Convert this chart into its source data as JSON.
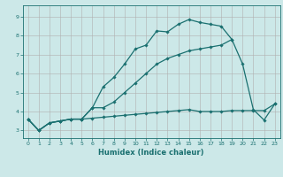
{
  "xlabel": "Humidex (Indice chaleur)",
  "ylabel": "",
  "background_color": "#cce8e8",
  "grid_color": "#b0b0b0",
  "line_color": "#1a7070",
  "xlim": [
    -0.5,
    23.5
  ],
  "ylim": [
    2.6,
    9.6
  ],
  "xticks": [
    0,
    1,
    2,
    3,
    4,
    5,
    6,
    7,
    8,
    9,
    10,
    11,
    12,
    13,
    14,
    15,
    16,
    17,
    18,
    19,
    20,
    21,
    22,
    23
  ],
  "yticks": [
    3,
    4,
    5,
    6,
    7,
    8,
    9
  ],
  "series": [
    {
      "x": [
        0,
        1,
        2,
        3,
        4,
        5,
        6,
        7,
        8,
        9,
        10,
        11,
        12,
        13,
        14,
        15,
        16,
        17,
        18,
        19
      ],
      "y": [
        3.6,
        3.0,
        3.4,
        3.5,
        3.6,
        3.6,
        4.2,
        5.3,
        5.8,
        6.5,
        7.3,
        7.5,
        8.25,
        8.2,
        8.6,
        8.85,
        8.7,
        8.6,
        8.5,
        7.8
      ]
    },
    {
      "x": [
        0,
        1,
        2,
        3,
        4,
        5,
        6,
        7,
        8,
        9,
        10,
        11,
        12,
        13,
        14,
        15,
        16,
        17,
        18,
        19,
        20,
        21,
        22,
        23
      ],
      "y": [
        3.6,
        3.0,
        3.4,
        3.5,
        3.6,
        3.6,
        4.2,
        4.2,
        4.5,
        5.0,
        5.5,
        6.0,
        6.5,
        6.8,
        7.0,
        7.2,
        7.3,
        7.4,
        7.5,
        7.8,
        6.5,
        4.1,
        3.55,
        4.4
      ]
    },
    {
      "x": [
        0,
        1,
        2,
        3,
        4,
        5,
        6,
        7,
        8,
        9,
        10,
        11,
        12,
        13,
        14,
        15,
        16,
        17,
        18,
        19,
        20,
        21,
        22,
        23
      ],
      "y": [
        3.6,
        3.0,
        3.4,
        3.5,
        3.6,
        3.6,
        3.65,
        3.7,
        3.75,
        3.8,
        3.85,
        3.9,
        3.95,
        4.0,
        4.05,
        4.1,
        4.0,
        4.0,
        4.0,
        4.05,
        4.05,
        4.05,
        4.05,
        4.4
      ]
    }
  ]
}
